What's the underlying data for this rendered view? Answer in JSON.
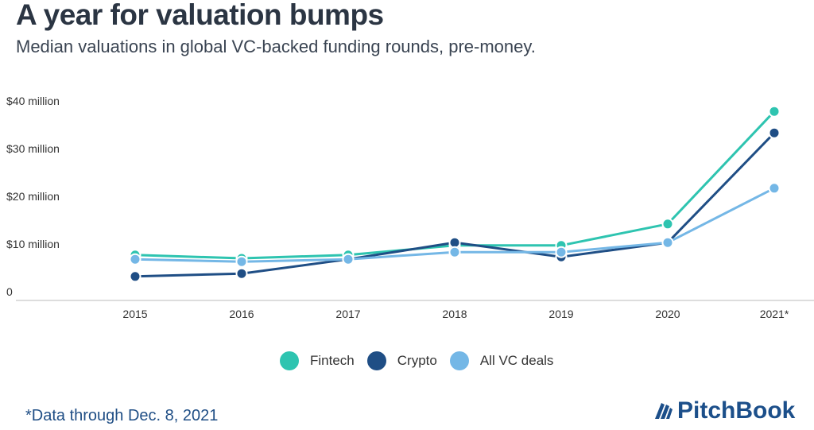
{
  "header": {
    "title": "A year for valuation bumps",
    "subtitle": "Median valuations in global VC-backed funding rounds, pre-money."
  },
  "chart_data": {
    "type": "line",
    "title": "A year for valuation bumps",
    "subtitle": "Median valuations in global VC-backed funding rounds, pre-money.",
    "xlabel": "",
    "ylabel": "",
    "categories": [
      "2015",
      "2016",
      "2017",
      "2018",
      "2019",
      "2020",
      "2021*"
    ],
    "ylim": [
      0,
      40
    ],
    "yticks": [
      0,
      10,
      20,
      30,
      40
    ],
    "ytick_labels": [
      "0",
      "$10 million",
      "$20 million",
      "$30 million",
      "$40 million"
    ],
    "grid": false,
    "legend_position": "bottom-center",
    "series": [
      {
        "name": "Fintech",
        "color": "#2ec4b0",
        "values": [
          7.7,
          7.0,
          7.7,
          9.7,
          9.7,
          14.2,
          37.8
        ]
      },
      {
        "name": "Crypto",
        "color": "#1f4e85",
        "values": [
          3.2,
          3.8,
          6.8,
          10.3,
          7.3,
          10.3,
          33.3
        ]
      },
      {
        "name": "All VC deals",
        "color": "#74b7e6",
        "values": [
          6.8,
          6.3,
          6.8,
          8.3,
          8.3,
          10.3,
          21.7
        ]
      }
    ]
  },
  "footnote": "*Data through Dec. 8, 2021",
  "logo": {
    "text": "PitchBook",
    "icon": "pitchbook-book-icon"
  }
}
